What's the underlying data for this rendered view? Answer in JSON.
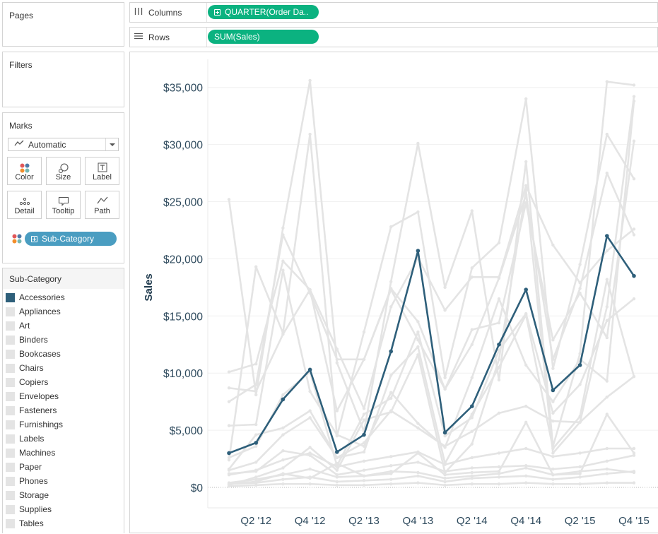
{
  "pages": {
    "title": "Pages"
  },
  "filters": {
    "title": "Filters"
  },
  "marks": {
    "title": "Marks",
    "mark_type": "Automatic",
    "buttons": {
      "color": "Color",
      "size": "Size",
      "label": "Label",
      "detail": "Detail",
      "tooltip": "Tooltip",
      "path": "Path"
    },
    "detail_pill": "Sub-Category"
  },
  "columns_shelf": {
    "label": "Columns",
    "pill": "QUARTER(Order Da.."
  },
  "rows_shelf": {
    "label": "Rows",
    "pill": "SUM(Sales)"
  },
  "legend": {
    "title": "Sub-Category",
    "items": [
      "Accessories",
      "Appliances",
      "Art",
      "Binders",
      "Bookcases",
      "Chairs",
      "Copiers",
      "Envelopes",
      "Fasteners",
      "Furnishings",
      "Labels",
      "Machines",
      "Paper",
      "Phones",
      "Storage",
      "Supplies",
      "Tables"
    ]
  },
  "colors": {
    "highlight": "#2e5f7a",
    "context": "#e4e4e4",
    "pill": "#0bb280",
    "detail_pill": "#4a9dc1",
    "axis_text": "#2e4a5d"
  },
  "chart_data": {
    "type": "line",
    "ylabel": "Sales",
    "ylim": [
      0,
      37000
    ],
    "yticks": [
      0,
      5000,
      10000,
      15000,
      20000,
      25000,
      30000,
      35000
    ],
    "ytick_labels": [
      "$0",
      "$5,000",
      "$10,000",
      "$15,000",
      "$20,000",
      "$25,000",
      "$30,000",
      "$35,000"
    ],
    "x": [
      "Q1 '12",
      "Q2 '12",
      "Q3 '12",
      "Q4 '12",
      "Q1 '13",
      "Q2 '13",
      "Q3 '13",
      "Q4 '13",
      "Q1 '14",
      "Q2 '14",
      "Q3 '14",
      "Q4 '14",
      "Q1 '15",
      "Q2 '15",
      "Q3 '15",
      "Q4 '15"
    ],
    "xtick_labels": [
      "Q2 '12",
      "Q4 '12",
      "Q2 '13",
      "Q4 '13",
      "Q2 '14",
      "Q4 '14",
      "Q2 '15",
      "Q4 '15"
    ],
    "highlight_series": "Accessories",
    "series": [
      {
        "name": "Accessories",
        "values": [
          3000,
          3900,
          7700,
          10300,
          3100,
          4600,
          11900,
          20700,
          4800,
          7100,
          12500,
          17300,
          8500,
          10700,
          22000,
          18500
        ]
      },
      {
        "name": "Appliances",
        "values": [
          2600,
          3600,
          8100,
          10100,
          1900,
          6400,
          7800,
          13600,
          4500,
          6100,
          12000,
          15200,
          6500,
          9000,
          14600,
          16500
        ]
      },
      {
        "name": "Art",
        "values": [
          1200,
          1400,
          3200,
          2800,
          1100,
          1500,
          1900,
          2200,
          1400,
          1700,
          1800,
          1900,
          1600,
          1800,
          2300,
          2800
        ]
      },
      {
        "name": "Binders",
        "values": [
          2400,
          19300,
          13500,
          30900,
          4500,
          13600,
          22800,
          24100,
          9600,
          19200,
          21400,
          34000,
          10400,
          19500,
          30900,
          27000
        ]
      },
      {
        "name": "Bookcases",
        "values": [
          1600,
          4600,
          5200,
          6700,
          2600,
          3100,
          9800,
          12300,
          2100,
          6400,
          10500,
          15100,
          3400,
          6200,
          18200,
          9700
        ]
      },
      {
        "name": "Chairs",
        "values": [
          10100,
          10800,
          19800,
          17300,
          6700,
          11200,
          17300,
          12900,
          8600,
          12500,
          18300,
          25600,
          11200,
          17400,
          27500,
          22100
        ]
      },
      {
        "name": "Copiers",
        "values": [
          200,
          900,
          1700,
          3500,
          1500,
          5900,
          6600,
          11600,
          1300,
          3800,
          11200,
          26000,
          3000,
          5700,
          15800,
          34200
        ]
      },
      {
        "name": "Envelopes",
        "values": [
          400,
          700,
          1100,
          1600,
          900,
          1000,
          1400,
          1300,
          800,
          1000,
          1200,
          1700,
          1100,
          1400,
          1600,
          1300
        ]
      },
      {
        "name": "Fasteners",
        "values": [
          100,
          200,
          300,
          300,
          200,
          200,
          300,
          400,
          200,
          300,
          300,
          400,
          300,
          300,
          400,
          400
        ]
      },
      {
        "name": "Furnishings",
        "values": [
          1500,
          2200,
          4600,
          6100,
          2600,
          3900,
          6700,
          5200,
          3600,
          4900,
          6500,
          7100,
          5800,
          5700,
          7900,
          9700
        ]
      },
      {
        "name": "Labels",
        "values": [
          300,
          400,
          700,
          900,
          500,
          600,
          700,
          1000,
          500,
          800,
          900,
          1000,
          700,
          900,
          1200,
          1400
        ]
      },
      {
        "name": "Machines",
        "values": [
          25200,
          8100,
          22700,
          35600,
          10900,
          4900,
          18000,
          30100,
          17500,
          24200,
          9400,
          28500,
          3600,
          11700,
          35500,
          35200
        ]
      },
      {
        "name": "Paper",
        "values": [
          1100,
          1500,
          2400,
          3000,
          1800,
          2300,
          2700,
          3100,
          2000,
          2600,
          3000,
          3400,
          2700,
          3000,
          3400,
          3400
        ]
      },
      {
        "name": "Phones",
        "values": [
          7500,
          9000,
          22100,
          17000,
          11200,
          11200,
          17400,
          14500,
          8600,
          13800,
          14400,
          24900,
          12900,
          17000,
          13100,
          30300
        ]
      },
      {
        "name": "Storage",
        "values": [
          8700,
          8400,
          13400,
          17300,
          12100,
          6900,
          15800,
          20100,
          15500,
          18400,
          18400,
          26400,
          21200,
          17900,
          20700,
          22600
        ]
      },
      {
        "name": "Supplies",
        "values": [
          300,
          500,
          1200,
          800,
          2100,
          1000,
          1200,
          3000,
          1100,
          1300,
          1400,
          5700,
          1100,
          1200,
          6400,
          3000
        ]
      },
      {
        "name": "Tables",
        "values": [
          5400,
          5500,
          19000,
          8400,
          4600,
          3600,
          8300,
          5600,
          3500,
          9600,
          16500,
          10700,
          7500,
          11200,
          9300,
          33800
        ]
      }
    ]
  }
}
